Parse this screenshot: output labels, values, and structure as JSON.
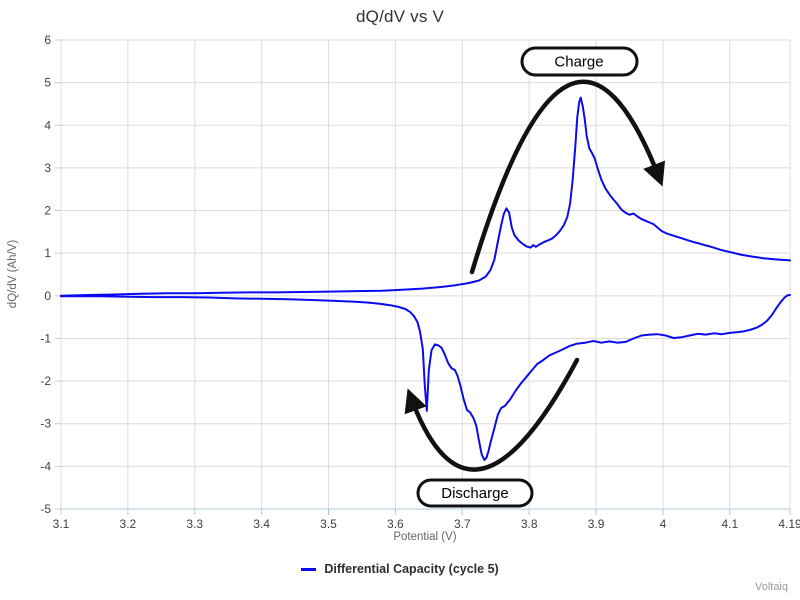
{
  "watermark": "Voltaiq",
  "legend": {
    "label": "Differential Capacity (cycle 5)"
  },
  "annotations": {
    "charge": {
      "label": "Charge"
    },
    "discharge": {
      "label": "Discharge"
    }
  },
  "chart_data": {
    "type": "line",
    "title": "dQ/dV vs V",
    "xlabel": "Potential (V)",
    "ylabel": "dQ/dV (Ah/V)",
    "xlim": [
      3.1,
      4.19
    ],
    "ylim": [
      -5,
      6
    ],
    "grid": true,
    "legend_position": "bottom-center",
    "x_ticks": [
      {
        "v": 3.1,
        "label": "3.1"
      },
      {
        "v": 3.2,
        "label": "3.2"
      },
      {
        "v": 3.3,
        "label": "3.3"
      },
      {
        "v": 3.4,
        "label": "3.4"
      },
      {
        "v": 3.5,
        "label": "3.5"
      },
      {
        "v": 3.6,
        "label": "3.6"
      },
      {
        "v": 3.7,
        "label": "3.7"
      },
      {
        "v": 3.8,
        "label": "3.8"
      },
      {
        "v": 3.9,
        "label": "3.9"
      },
      {
        "v": 4.0,
        "label": "4"
      },
      {
        "v": 4.1,
        "label": "4.1"
      },
      {
        "v": 4.19,
        "label": "4.19"
      }
    ],
    "y_ticks": [
      {
        "v": 6,
        "label": "6"
      },
      {
        "v": 5,
        "label": "5"
      },
      {
        "v": 4,
        "label": "4"
      },
      {
        "v": 3,
        "label": "3"
      },
      {
        "v": 2,
        "label": "2"
      },
      {
        "v": 1,
        "label": "1"
      },
      {
        "v": 0,
        "label": "0"
      },
      {
        "v": -1,
        "label": "-1"
      },
      {
        "v": -2,
        "label": "-2"
      },
      {
        "v": -3,
        "label": "-3"
      },
      {
        "v": -4,
        "label": "-4"
      },
      {
        "v": -5,
        "label": "-5"
      }
    ],
    "series": [
      {
        "name": "Differential Capacity (cycle 5)",
        "color": "#0b0bf0",
        "branches": {
          "charge": [
            [
              3.1,
              0.0
            ],
            [
              3.14,
              0.02
            ],
            [
              3.18,
              0.03
            ],
            [
              3.22,
              0.05
            ],
            [
              3.26,
              0.06
            ],
            [
              3.3,
              0.06
            ],
            [
              3.34,
              0.07
            ],
            [
              3.38,
              0.08
            ],
            [
              3.42,
              0.08
            ],
            [
              3.46,
              0.09
            ],
            [
              3.5,
              0.1
            ],
            [
              3.54,
              0.11
            ],
            [
              3.58,
              0.12
            ],
            [
              3.61,
              0.14
            ],
            [
              3.64,
              0.17
            ],
            [
              3.67,
              0.21
            ],
            [
              3.69,
              0.25
            ],
            [
              3.71,
              0.3
            ],
            [
              3.725,
              0.36
            ],
            [
              3.735,
              0.45
            ],
            [
              3.742,
              0.6
            ],
            [
              3.748,
              0.85
            ],
            [
              3.753,
              1.25
            ],
            [
              3.758,
              1.65
            ],
            [
              3.762,
              1.92
            ],
            [
              3.766,
              2.05
            ],
            [
              3.77,
              1.95
            ],
            [
              3.774,
              1.6
            ],
            [
              3.778,
              1.42
            ],
            [
              3.784,
              1.3
            ],
            [
              3.79,
              1.22
            ],
            [
              3.796,
              1.16
            ],
            [
              3.802,
              1.13
            ],
            [
              3.806,
              1.19
            ],
            [
              3.81,
              1.15
            ],
            [
              3.816,
              1.21
            ],
            [
              3.822,
              1.26
            ],
            [
              3.828,
              1.3
            ],
            [
              3.834,
              1.34
            ],
            [
              3.84,
              1.42
            ],
            [
              3.846,
              1.52
            ],
            [
              3.852,
              1.66
            ],
            [
              3.857,
              1.85
            ],
            [
              3.861,
              2.15
            ],
            [
              3.865,
              2.7
            ],
            [
              3.869,
              3.5
            ],
            [
              3.872,
              4.2
            ],
            [
              3.875,
              4.55
            ],
            [
              3.877,
              4.65
            ],
            [
              3.88,
              4.45
            ],
            [
              3.883,
              4.15
            ],
            [
              3.886,
              3.75
            ],
            [
              3.89,
              3.45
            ],
            [
              3.894,
              3.35
            ],
            [
              3.898,
              3.22
            ],
            [
              3.903,
              2.95
            ],
            [
              3.908,
              2.72
            ],
            [
              3.914,
              2.52
            ],
            [
              3.92,
              2.38
            ],
            [
              3.926,
              2.26
            ],
            [
              3.932,
              2.15
            ],
            [
              3.938,
              2.02
            ],
            [
              3.944,
              1.95
            ],
            [
              3.95,
              1.9
            ],
            [
              3.956,
              1.93
            ],
            [
              3.962,
              1.86
            ],
            [
              3.968,
              1.8
            ],
            [
              3.974,
              1.76
            ],
            [
              3.98,
              1.72
            ],
            [
              3.986,
              1.68
            ],
            [
              3.992,
              1.6
            ],
            [
              3.998,
              1.52
            ],
            [
              4.006,
              1.46
            ],
            [
              4.014,
              1.42
            ],
            [
              4.022,
              1.38
            ],
            [
              4.03,
              1.34
            ],
            [
              4.038,
              1.3
            ],
            [
              4.046,
              1.26
            ],
            [
              4.054,
              1.23
            ],
            [
              4.062,
              1.19
            ],
            [
              4.07,
              1.16
            ],
            [
              4.078,
              1.12
            ],
            [
              4.086,
              1.08
            ],
            [
              4.094,
              1.05
            ],
            [
              4.102,
              1.02
            ],
            [
              4.11,
              0.99
            ],
            [
              4.118,
              0.96
            ],
            [
              4.126,
              0.94
            ],
            [
              4.134,
              0.92
            ],
            [
              4.142,
              0.9
            ],
            [
              4.15,
              0.88
            ],
            [
              4.158,
              0.87
            ],
            [
              4.166,
              0.86
            ],
            [
              4.174,
              0.85
            ],
            [
              4.182,
              0.84
            ],
            [
              4.19,
              0.83
            ]
          ],
          "discharge": [
            [
              4.19,
              0.02
            ],
            [
              4.186,
              0.01
            ],
            [
              4.182,
              -0.04
            ],
            [
              4.176,
              -0.15
            ],
            [
              4.17,
              -0.28
            ],
            [
              4.163,
              -0.45
            ],
            [
              4.156,
              -0.58
            ],
            [
              4.149,
              -0.67
            ],
            [
              4.141,
              -0.74
            ],
            [
              4.132,
              -0.79
            ],
            [
              4.122,
              -0.83
            ],
            [
              4.112,
              -0.85
            ],
            [
              4.1,
              -0.87
            ],
            [
              4.088,
              -0.9
            ],
            [
              4.076,
              -0.88
            ],
            [
              4.064,
              -0.91
            ],
            [
              4.052,
              -0.89
            ],
            [
              4.04,
              -0.93
            ],
            [
              4.028,
              -0.97
            ],
            [
              4.016,
              -0.99
            ],
            [
              4.004,
              -0.93
            ],
            [
              3.992,
              -0.9
            ],
            [
              3.98,
              -0.91
            ],
            [
              3.968,
              -0.93
            ],
            [
              3.956,
              -1.0
            ],
            [
              3.944,
              -1.08
            ],
            [
              3.932,
              -1.1
            ],
            [
              3.92,
              -1.07
            ],
            [
              3.908,
              -1.1
            ],
            [
              3.896,
              -1.06
            ],
            [
              3.884,
              -1.1
            ],
            [
              3.872,
              -1.12
            ],
            [
              3.86,
              -1.18
            ],
            [
              3.85,
              -1.26
            ],
            [
              3.84,
              -1.33
            ],
            [
              3.83,
              -1.4
            ],
            [
              3.82,
              -1.52
            ],
            [
              3.812,
              -1.6
            ],
            [
              3.804,
              -1.75
            ],
            [
              3.796,
              -1.9
            ],
            [
              3.788,
              -2.05
            ],
            [
              3.78,
              -2.22
            ],
            [
              3.772,
              -2.42
            ],
            [
              3.764,
              -2.58
            ],
            [
              3.758,
              -2.63
            ],
            [
              3.753,
              -2.8
            ],
            [
              3.748,
              -3.1
            ],
            [
              3.743,
              -3.4
            ],
            [
              3.739,
              -3.65
            ],
            [
              3.736,
              -3.8
            ],
            [
              3.733,
              -3.85
            ],
            [
              3.729,
              -3.72
            ],
            [
              3.725,
              -3.4
            ],
            [
              3.721,
              -3.05
            ],
            [
              3.717,
              -2.88
            ],
            [
              3.712,
              -2.74
            ],
            [
              3.707,
              -2.68
            ],
            [
              3.702,
              -2.42
            ],
            [
              3.697,
              -2.1
            ],
            [
              3.693,
              -1.88
            ],
            [
              3.689,
              -1.74
            ],
            [
              3.684,
              -1.7
            ],
            [
              3.679,
              -1.58
            ],
            [
              3.674,
              -1.38
            ],
            [
              3.669,
              -1.22
            ],
            [
              3.664,
              -1.16
            ],
            [
              3.659,
              -1.14
            ],
            [
              3.654,
              -1.28
            ],
            [
              3.65,
              -1.75
            ],
            [
              3.647,
              -2.7
            ],
            [
              3.644,
              -2.1
            ],
            [
              3.641,
              -1.25
            ],
            [
              3.637,
              -0.85
            ],
            [
              3.633,
              -0.62
            ],
            [
              3.628,
              -0.48
            ],
            [
              3.622,
              -0.38
            ],
            [
              3.615,
              -0.31
            ],
            [
              3.605,
              -0.26
            ],
            [
              3.592,
              -0.22
            ],
            [
              3.578,
              -0.19
            ],
            [
              3.56,
              -0.16
            ],
            [
              3.54,
              -0.14
            ],
            [
              3.51,
              -0.12
            ],
            [
              3.48,
              -0.1
            ],
            [
              3.44,
              -0.08
            ],
            [
              3.4,
              -0.07
            ],
            [
              3.36,
              -0.06
            ],
            [
              3.32,
              -0.04
            ],
            [
              3.28,
              -0.03
            ],
            [
              3.24,
              -0.03
            ],
            [
              3.2,
              -0.02
            ],
            [
              3.16,
              -0.01
            ],
            [
              3.1,
              -0.01
            ]
          ]
        }
      }
    ],
    "annotation_arrows": [
      {
        "name": "charge",
        "direction": "up-over-right"
      },
      {
        "name": "discharge",
        "direction": "down-under-left"
      }
    ]
  }
}
